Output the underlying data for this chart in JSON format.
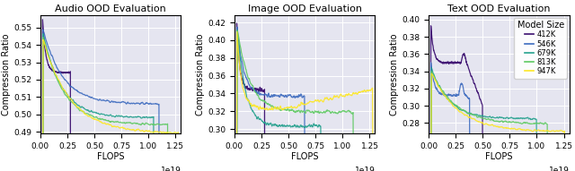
{
  "titles": [
    "Audio OOD Evaluation",
    "Image OOD Evaluation",
    "Text OOD Evaluation"
  ],
  "xlabel": "FLOPS",
  "ylabel": "Compression Ratio",
  "legend_title": "Model Size",
  "legend_labels": [
    "412K",
    "546K",
    "679K",
    "813K",
    "947K"
  ],
  "colors": [
    "#3b0f70",
    "#3d6bbf",
    "#25a18e",
    "#5ec962",
    "#fde725"
  ],
  "background_color": "#e5e5f0",
  "audio_ylim": [
    0.489,
    0.557
  ],
  "audio_yticks": [
    0.49,
    0.5,
    0.51,
    0.52,
    0.53,
    0.54,
    0.55
  ],
  "image_ylim": [
    0.295,
    0.428
  ],
  "image_yticks": [
    0.3,
    0.32,
    0.34,
    0.36,
    0.38,
    0.4,
    0.42
  ],
  "text_ylim": [
    0.268,
    0.405
  ],
  "text_yticks": [
    0.28,
    0.3,
    0.32,
    0.34,
    0.36,
    0.38,
    0.4
  ],
  "xlim": [
    0,
    1.3e+19
  ],
  "xticks": [
    0,
    2.5e+18,
    5e+18,
    7.5e+18,
    1e+19,
    1.25e+19
  ],
  "xtick_labels": [
    "0.00",
    "0.25",
    "0.50",
    "0.75",
    "1.00",
    "1.25"
  ],
  "figsize": [
    6.4,
    1.91
  ],
  "dpi": 100
}
